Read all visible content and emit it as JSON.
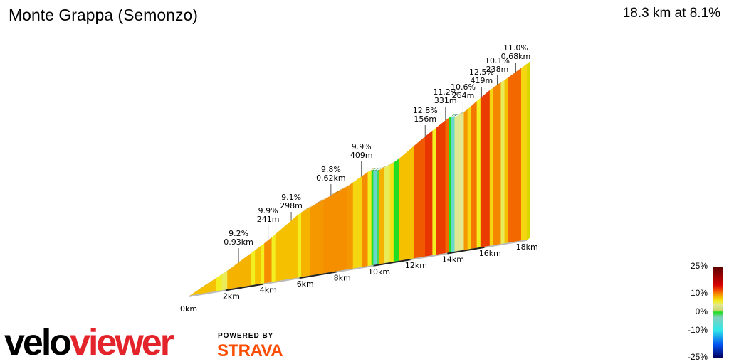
{
  "header": {
    "title": "Monte Grappa (Semonzo)",
    "summary": "18.3 km at 8.1%"
  },
  "branding": {
    "logo_part1": "velo",
    "logo_part2": "viewer",
    "powered_by": "POWERED BY",
    "partner": "STRAVA"
  },
  "chart_data": {
    "type": "area",
    "style": "3d gradient-coloured climb profile",
    "x_unit": "km",
    "xlim": [
      0,
      18.3
    ],
    "x_ticks": [
      "0km",
      "2km",
      "4km",
      "6km",
      "8km",
      "10km",
      "12km",
      "14km",
      "16km",
      "18km"
    ],
    "profile_elevation_gain_m": [
      [
        0,
        0
      ],
      [
        2.1,
        160
      ],
      [
        4.3,
        357
      ],
      [
        6,
        540
      ],
      [
        8.6,
        700
      ],
      [
        9.8,
        800
      ],
      [
        10.3,
        790
      ],
      [
        11.2,
        840
      ],
      [
        12.8,
        1010
      ],
      [
        14.1,
        1135
      ],
      [
        14.6,
        1125
      ],
      [
        15.2,
        1190
      ],
      [
        16.2,
        1300
      ],
      [
        17.1,
        1370
      ],
      [
        18.3,
        1475
      ]
    ],
    "segments_gradient_pct": [
      [
        0,
        1.5,
        8
      ],
      [
        1.5,
        1.8,
        6
      ],
      [
        1.8,
        2.1,
        5
      ],
      [
        2.1,
        3.4,
        8.5
      ],
      [
        3.4,
        3.6,
        6
      ],
      [
        3.6,
        3.9,
        8
      ],
      [
        3.9,
        4.1,
        6
      ],
      [
        4.1,
        4.5,
        9.8
      ],
      [
        4.5,
        4.7,
        6
      ],
      [
        4.7,
        5.9,
        8
      ],
      [
        5.9,
        6.1,
        6
      ],
      [
        6.1,
        6.6,
        8.5
      ],
      [
        6.6,
        7.3,
        9.5
      ],
      [
        7.3,
        8.6,
        9.8
      ],
      [
        8.6,
        8.9,
        9.5
      ],
      [
        8.9,
        9.4,
        7
      ],
      [
        9.4,
        9.7,
        9.9
      ],
      [
        9.7,
        9.9,
        6
      ],
      [
        9.9,
        10.0,
        0
      ],
      [
        10.0,
        10.2,
        -5
      ],
      [
        10.2,
        10.3,
        -1
      ],
      [
        10.3,
        10.6,
        8.5
      ],
      [
        10.6,
        10.9,
        5
      ],
      [
        10.9,
        11.1,
        6.5
      ],
      [
        11.1,
        11.4,
        0
      ],
      [
        11.4,
        12.2,
        8
      ],
      [
        12.2,
        12.8,
        11.5
      ],
      [
        12.8,
        13.2,
        12.8
      ],
      [
        13.2,
        13.4,
        6
      ],
      [
        13.4,
        13.9,
        12.5
      ],
      [
        13.9,
        14.1,
        11
      ],
      [
        14.1,
        14.2,
        0
      ],
      [
        14.2,
        14.4,
        -5
      ],
      [
        14.4,
        14.9,
        4
      ],
      [
        14.9,
        15.1,
        9.5
      ],
      [
        15.1,
        15.3,
        7
      ],
      [
        15.3,
        15.6,
        10.6
      ],
      [
        15.6,
        15.8,
        6
      ],
      [
        15.8,
        16.3,
        12.5
      ],
      [
        16.3,
        16.5,
        7
      ],
      [
        16.5,
        16.9,
        10.1
      ],
      [
        16.9,
        17.1,
        5
      ],
      [
        17.1,
        17.3,
        8
      ],
      [
        17.3,
        18.0,
        11
      ],
      [
        18.0,
        18.3,
        7
      ]
    ],
    "annotations": [
      {
        "km": 2.7,
        "line1": "9.2%",
        "line2": "0.93km"
      },
      {
        "km": 4.3,
        "line1": "9.9%",
        "line2": "241m"
      },
      {
        "km": 5.55,
        "line1": "9.1%",
        "line2": "298m"
      },
      {
        "km": 7.7,
        "line1": "9.8%",
        "line2": "0.62km"
      },
      {
        "km": 9.35,
        "line1": "9.9%",
        "line2": "409m"
      },
      {
        "km": 12.8,
        "line1": "12.8%",
        "line2": "156m"
      },
      {
        "km": 13.9,
        "line1": "11.2%",
        "line2": "331m"
      },
      {
        "km": 14.85,
        "line1": "10.6%",
        "line2": "264m"
      },
      {
        "km": 15.85,
        "line1": "12.5%",
        "line2": "419m"
      },
      {
        "km": 16.7,
        "line1": "10.1%",
        "line2": "238m"
      },
      {
        "km": 17.7,
        "line1": "11.0%",
        "line2": "0.68km"
      }
    ],
    "color_scale": {
      "ticks": [
        "25%",
        "10%",
        "0%",
        "-10%",
        "-25%"
      ],
      "stops": [
        [
          25,
          "#5a0000"
        ],
        [
          15,
          "#d40000"
        ],
        [
          12,
          "#f04800"
        ],
        [
          10,
          "#f58a00"
        ],
        [
          8,
          "#f5c000"
        ],
        [
          6,
          "#f2ee20"
        ],
        [
          4,
          "#e2e890"
        ],
        [
          1,
          "#c8d870"
        ],
        [
          0,
          "#22dd22"
        ],
        [
          -3,
          "#80d0c0"
        ],
        [
          -10,
          "#30e8e8"
        ],
        [
          -18,
          "#0050f0"
        ],
        [
          -25,
          "#000060"
        ]
      ]
    }
  }
}
